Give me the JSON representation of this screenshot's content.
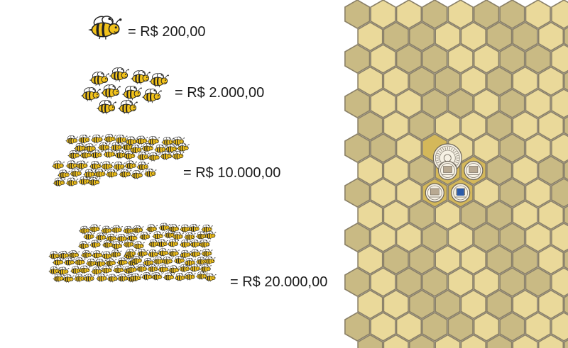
{
  "tiers": [
    {
      "bees": 1,
      "label": "= R$ 200,00"
    },
    {
      "bees": 10,
      "label": "= R$ 2.000,00"
    },
    {
      "bees": 50,
      "label": "= R$ 10.000,00"
    },
    {
      "bees": 100,
      "label": "= R$ 20.000,00"
    }
  ],
  "honeycomb": {
    "colors": {
      "light": "#ead99a",
      "dark": "#c9ba84",
      "gap": "#8a8067",
      "center": "#d4b85a"
    },
    "seals": [
      {
        "name": "main-university-seal-icon"
      },
      {
        "name": "library-seal-icon"
      },
      {
        "name": "institution-seal-icon"
      },
      {
        "name": "biblioteca-nacional-seal-icon"
      },
      {
        "name": "blue-logo-seal-icon"
      }
    ]
  }
}
